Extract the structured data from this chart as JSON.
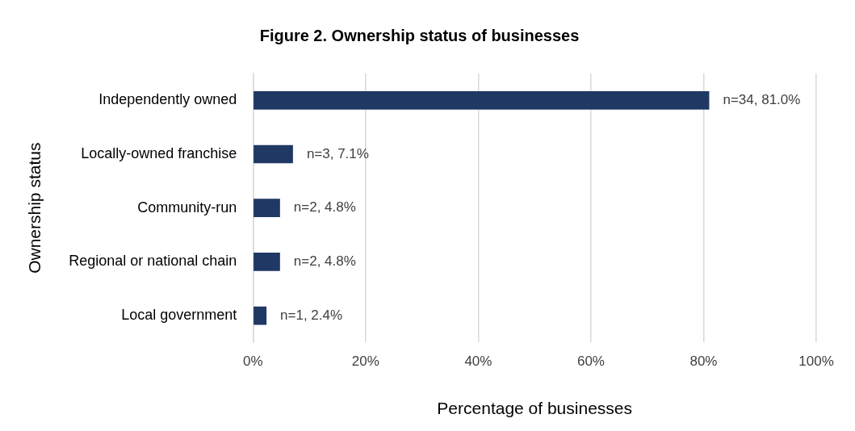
{
  "chart_data": {
    "type": "bar",
    "orientation": "horizontal",
    "title": "Figure 2. Ownership status of businesses",
    "xlabel": "Percentage of businesses",
    "ylabel": "Ownership status",
    "categories": [
      "Independently owned",
      "Locally-owned franchise",
      "Community-run",
      "Regional or national chain",
      "Local government"
    ],
    "values": [
      81.0,
      7.1,
      4.8,
      4.8,
      2.4
    ],
    "color": "#203864",
    "value_labels": [
      "n=34, 81.0%",
      "n=3, 7.1%",
      "n=2, 4.8%",
      "n=2, 4.8%",
      "n=1, 2.4%"
    ],
    "xlim": [
      0,
      100
    ],
    "xticks": [
      {
        "value": 0,
        "label": "0%"
      },
      {
        "value": 20,
        "label": "20%"
      },
      {
        "value": 40,
        "label": "40%"
      },
      {
        "value": 60,
        "label": "60%"
      },
      {
        "value": 80,
        "label": "80%"
      },
      {
        "value": 100,
        "label": "100%"
      }
    ],
    "grid": "x",
    "legend": false
  }
}
